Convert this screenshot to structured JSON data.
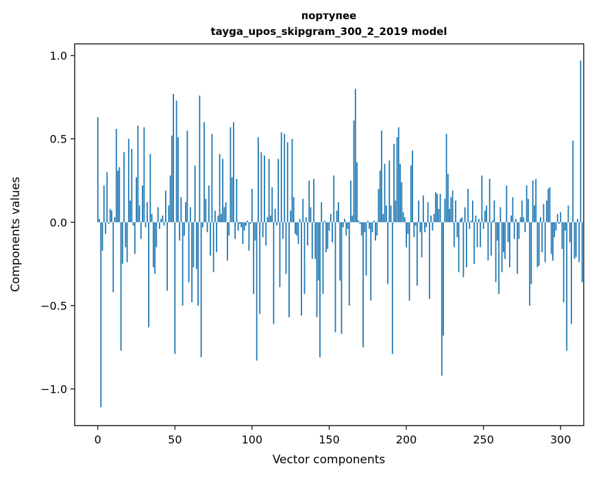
{
  "chart_data": {
    "type": "bar",
    "title": "портупее",
    "subtitle": "tayga_upos_skipgram_300_2_2019 model",
    "xlabel": "Vector components",
    "ylabel": "Components values",
    "xlim": [
      -15,
      315
    ],
    "ylim": [
      -1.22,
      1.07
    ],
    "xticks": [
      0,
      50,
      100,
      150,
      200,
      250,
      300
    ],
    "yticks": [
      -1.0,
      -0.5,
      0.0,
      0.5,
      1.0
    ],
    "ytick_labels": [
      "−1.0",
      "−0.5",
      "0.0",
      "0.5",
      "1.0"
    ],
    "grid": false,
    "bar_color": "#1f77b4",
    "x_start": 0,
    "values": [
      0.63,
      0.02,
      -1.11,
      -0.17,
      0.22,
      -0.07,
      0.3,
      -0.01,
      0.08,
      0.07,
      -0.42,
      0.03,
      0.56,
      0.31,
      0.33,
      -0.77,
      -0.25,
      0.42,
      -0.15,
      -0.24,
      0.5,
      0.13,
      0.44,
      -0.02,
      -0.19,
      0.27,
      0.58,
      0.1,
      -0.1,
      0.22,
      0.57,
      -0.03,
      0.12,
      -0.63,
      0.41,
      0.05,
      -0.27,
      -0.31,
      -0.15,
      0.09,
      -0.04,
      0.02,
      0.04,
      -0.02,
      0.19,
      -0.41,
      0.1,
      0.28,
      0.52,
      0.77,
      -0.79,
      0.73,
      0.51,
      -0.11,
      0.15,
      -0.5,
      -0.08,
      0.12,
      0.55,
      -0.36,
      0.09,
      -0.48,
      -0.27,
      0.34,
      -0.28,
      -0.5,
      0.76,
      -0.81,
      -0.03,
      0.6,
      0.14,
      -0.06,
      0.22,
      -0.2,
      0.53,
      -0.3,
      0.07,
      -0.18,
      0.04,
      0.41,
      0.05,
      0.38,
      0.09,
      0.12,
      -0.23,
      -0.08,
      0.57,
      0.27,
      0.6,
      -0.1,
      0.26,
      -0.05,
      -0.01,
      -0.03,
      -0.13,
      -0.05,
      -0.02,
      0.01,
      -0.17,
      -0.01,
      0.2,
      -0.43,
      -0.11,
      -0.83,
      0.51,
      -0.55,
      0.42,
      -0.09,
      0.4,
      -0.14,
      0.03,
      0.38,
      0.04,
      0.21,
      -0.61,
      0.08,
      -0.02,
      0.38,
      -0.39,
      0.54,
      -0.1,
      0.53,
      -0.31,
      0.48,
      -0.57,
      0.07,
      0.5,
      0.15,
      -0.07,
      -0.08,
      -0.13,
      0.02,
      -0.56,
      0.14,
      -0.43,
      0.03,
      -0.14,
      0.25,
      0.09,
      -0.22,
      0.26,
      -0.22,
      -0.57,
      -0.35,
      -0.81,
      0.12,
      -0.43,
      0.01,
      -0.18,
      -0.16,
      -0.05,
      0.05,
      -0.12,
      0.28,
      -0.66,
      0.07,
      0.12,
      -0.35,
      -0.67,
      -0.03,
      0.02,
      -0.08,
      -0.04,
      -0.5,
      0.25,
      0.04,
      0.61,
      0.8,
      0.36,
      0.01,
      -0.01,
      -0.08,
      -0.75,
      -0.06,
      -0.32,
      0.01,
      -0.04,
      -0.47,
      -0.06,
      0.01,
      -0.11,
      -0.08,
      0.2,
      0.31,
      0.55,
      0.05,
      0.35,
      0.1,
      -0.37,
      0.37,
      0.1,
      -0.79,
      0.47,
      0.13,
      0.51,
      0.57,
      0.35,
      0.24,
      0.06,
      0.03,
      -0.15,
      -0.07,
      -0.47,
      0.34,
      0.43,
      -0.09,
      -0.02,
      -0.38,
      0.13,
      -0.06,
      -0.21,
      0.16,
      -0.06,
      -0.03,
      0.12,
      -0.46,
      0.04,
      -0.05,
      0.05,
      0.18,
      0.17,
      0.08,
      0.17,
      -0.92,
      -0.68,
      0.14,
      0.53,
      0.29,
      0.08,
      0.15,
      0.19,
      -0.15,
      0.13,
      -0.09,
      -0.3,
      0.02,
      0.03,
      -0.33,
      0.09,
      -0.27,
      0.2,
      -0.04,
      0.01,
      0.13,
      -0.25,
      0.04,
      -0.15,
      0.02,
      -0.15,
      0.28,
      -0.04,
      0.07,
      0.1,
      -0.23,
      0.26,
      -0.2,
      0.01,
      0.13,
      -0.36,
      -0.11,
      -0.43,
      0.09,
      -0.3,
      -0.18,
      -0.22,
      0.22,
      -0.12,
      -0.27,
      0.04,
      0.15,
      -0.1,
      0.02,
      -0.31,
      -0.1,
      0.03,
      0.13,
      0.03,
      -0.06,
      0.22,
      0.14,
      -0.5,
      -0.37,
      0.25,
      0.1,
      0.26,
      -0.27,
      -0.26,
      0.03,
      -0.18,
      0.11,
      -0.24,
      0.13,
      0.2,
      0.21,
      -0.19,
      -0.23,
      -0.09,
      -0.05,
      0.05,
      -0.01,
      0.06,
      -0.16,
      -0.48,
      -0.05,
      -0.77,
      0.1,
      -0.12,
      -0.61,
      0.49,
      -0.22,
      -0.21,
      0.02,
      -0.24,
      0.97,
      -0.36
    ]
  }
}
